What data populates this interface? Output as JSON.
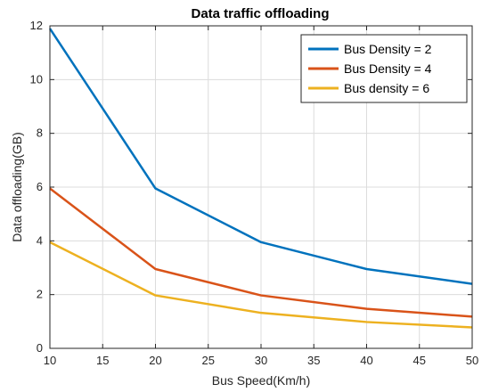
{
  "chart_data": {
    "type": "line",
    "title": "Data traffic offloading",
    "xlabel": "Bus Speed(Km/h)",
    "ylabel": "Data offloading(GB)",
    "xlim": [
      10,
      50
    ],
    "ylim": [
      0,
      12
    ],
    "xticks": [
      10,
      15,
      20,
      25,
      30,
      35,
      40,
      45,
      50
    ],
    "yticks": [
      0,
      2,
      4,
      6,
      8,
      10,
      12
    ],
    "grid": true,
    "legend_position": "top-right",
    "x": [
      10,
      20,
      30,
      40,
      50
    ],
    "series": [
      {
        "name": "Bus Density = 2",
        "color": "#0072BD",
        "values": [
          11.9,
          5.95,
          3.95,
          2.95,
          2.4
        ]
      },
      {
        "name": "Bus Density = 4",
        "color": "#D95319",
        "values": [
          5.95,
          2.95,
          1.97,
          1.47,
          1.18
        ]
      },
      {
        "name": "Bus density = 6",
        "color": "#EDB120",
        "values": [
          3.95,
          1.97,
          1.32,
          0.98,
          0.78
        ]
      }
    ]
  }
}
